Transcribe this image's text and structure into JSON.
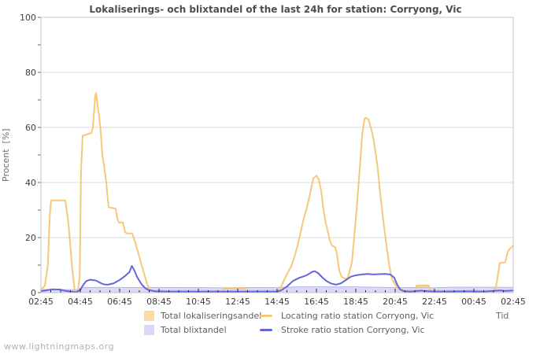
{
  "title": "Lokaliserings- och blixtandel of the last 24h for station: Corryong, Vic",
  "watermark": "www.lightningmaps.org",
  "axes": {
    "y_label": "Procent  [%]",
    "x_label": "Tid",
    "y_ticks": [
      0,
      20,
      40,
      60,
      80,
      100
    ],
    "x_tick_labels": [
      "02:45",
      "04:45",
      "06:45",
      "08:45",
      "10:45",
      "12:45",
      "14:45",
      "16:45",
      "18:45",
      "20:45",
      "22:45",
      "00:45",
      "02:45"
    ]
  },
  "legend": {
    "items": [
      {
        "label": "Total lokaliseringsandel",
        "swatch": "area",
        "color": "#f9dca4"
      },
      {
        "label": "Total blixtandel",
        "swatch": "area",
        "color": "#d9d9f7"
      },
      {
        "label": "Locating ratio station Corryong, Vic",
        "swatch": "line",
        "color": "#f6c878"
      },
      {
        "label": "Stroke ratio station Corryong, Vic",
        "swatch": "line",
        "color": "#6666d8"
      }
    ]
  },
  "colors": {
    "grid": "#d9d9d9",
    "plot_border": "#c6c6c6",
    "x_tick": "#222222",
    "y_tick": "#666666",
    "blixtandel_edge": "#b6b6ea"
  },
  "chart_data": {
    "type": "line",
    "title": "Lokaliserings- och blixtandel of the last 24h for station: Corryong, Vic",
    "xlabel": "Tid",
    "ylabel": "Procent [%]",
    "ylim": [
      0,
      100
    ],
    "y_ticks": [
      0,
      20,
      40,
      60,
      80,
      100
    ],
    "grid": "horizontal-major-gridlines",
    "legend_position": "bottom",
    "x_axis_hours_span": 24,
    "x_start_time": "02:45",
    "x_major_tick_hours": 2,
    "x_minor_tick_hours": 0.5,
    "note": "points are [hours_after_02:45, percent]",
    "series": [
      {
        "name": "Total lokaliseringsandel",
        "slug": "total-lokaliseringsandel",
        "type": "area",
        "color": "#f9dca4",
        "points": [
          [
            0,
            0.35
          ],
          [
            9.2,
            0.35
          ],
          [
            9.3,
            1.45
          ],
          [
            10.4,
            1.45
          ],
          [
            10.5,
            0.35
          ],
          [
            19.0,
            0.35
          ],
          [
            19.1,
            2.5
          ],
          [
            19.7,
            2.5
          ],
          [
            19.8,
            0.35
          ],
          [
            24,
            0.35
          ]
        ]
      },
      {
        "name": "Total blixtandel",
        "slug": "total-blixtandel",
        "type": "area",
        "color": "#d9d9f7",
        "edge_color": "#b6b6ea",
        "points": [
          [
            0,
            1.1
          ],
          [
            1.9,
            1.1
          ],
          [
            2.05,
            1.9
          ],
          [
            6,
            1.9
          ],
          [
            9,
            1.8
          ],
          [
            12,
            1.9
          ],
          [
            13,
            2.1
          ],
          [
            16,
            2.1
          ],
          [
            17.5,
            1.9
          ],
          [
            20,
            1.8
          ],
          [
            21,
            2.0
          ],
          [
            24,
            1.9
          ]
        ]
      },
      {
        "name": "Locating ratio station Corryong, Vic",
        "slug": "locating-ratio",
        "type": "line",
        "color": "#f6c878",
        "points": [
          [
            0,
            1
          ],
          [
            0.2,
            2.5
          ],
          [
            0.35,
            10
          ],
          [
            0.45,
            28
          ],
          [
            0.52,
            33.5
          ],
          [
            1.24,
            33.5
          ],
          [
            1.4,
            25
          ],
          [
            1.6,
            8
          ],
          [
            1.72,
            0.7
          ],
          [
            1.88,
            0.5
          ],
          [
            1.97,
            6
          ],
          [
            2.04,
            45
          ],
          [
            2.12,
            57
          ],
          [
            2.56,
            58
          ],
          [
            2.64,
            60
          ],
          [
            2.76,
            71.5
          ],
          [
            2.8,
            72.5
          ],
          [
            2.88,
            68
          ],
          [
            2.96,
            64
          ],
          [
            3.04,
            58.5
          ],
          [
            3.12,
            50
          ],
          [
            3.2,
            46.5
          ],
          [
            3.32,
            40
          ],
          [
            3.44,
            31
          ],
          [
            3.8,
            30.5
          ],
          [
            3.88,
            27
          ],
          [
            3.96,
            25.5
          ],
          [
            4.16,
            25.5
          ],
          [
            4.28,
            22
          ],
          [
            4.36,
            21.5
          ],
          [
            4.64,
            21.5
          ],
          [
            4.8,
            18
          ],
          [
            5.0,
            13
          ],
          [
            5.2,
            8
          ],
          [
            5.4,
            3
          ],
          [
            5.56,
            0.8
          ],
          [
            5.9,
            0.4
          ],
          [
            9.2,
            0.4
          ],
          [
            9.3,
            1.5
          ],
          [
            10.4,
            1.5
          ],
          [
            10.5,
            0.4
          ],
          [
            12.0,
            0.4
          ],
          [
            12.16,
            1.5
          ],
          [
            12.32,
            4
          ],
          [
            12.52,
            7
          ],
          [
            12.72,
            9.5
          ],
          [
            12.88,
            13
          ],
          [
            13.04,
            17
          ],
          [
            13.2,
            22
          ],
          [
            13.36,
            27
          ],
          [
            13.52,
            31
          ],
          [
            13.68,
            36
          ],
          [
            13.84,
            41.5
          ],
          [
            14.0,
            42.5
          ],
          [
            14.12,
            41
          ],
          [
            14.24,
            37
          ],
          [
            14.36,
            30
          ],
          [
            14.48,
            25
          ],
          [
            14.56,
            22.8
          ],
          [
            14.68,
            19
          ],
          [
            14.8,
            17
          ],
          [
            14.96,
            16.5
          ],
          [
            15.04,
            14
          ],
          [
            15.16,
            8
          ],
          [
            15.28,
            5.8
          ],
          [
            15.48,
            4.9
          ],
          [
            15.6,
            5.5
          ],
          [
            15.8,
            11
          ],
          [
            15.92,
            20
          ],
          [
            16.04,
            30
          ],
          [
            16.2,
            45
          ],
          [
            16.32,
            57
          ],
          [
            16.44,
            63
          ],
          [
            16.5,
            63.5
          ],
          [
            16.64,
            63
          ],
          [
            16.8,
            59
          ],
          [
            16.92,
            55
          ],
          [
            17.12,
            45
          ],
          [
            17.24,
            36
          ],
          [
            17.4,
            26
          ],
          [
            17.6,
            15
          ],
          [
            17.72,
            9
          ],
          [
            17.84,
            5
          ],
          [
            18.0,
            3
          ],
          [
            18.16,
            1.5
          ],
          [
            18.32,
            0.6
          ],
          [
            19.0,
            0.4
          ],
          [
            19.1,
            2.6
          ],
          [
            19.7,
            2.6
          ],
          [
            19.8,
            0.4
          ],
          [
            23.0,
            0.35
          ],
          [
            23.12,
            2
          ],
          [
            23.2,
            5.4
          ],
          [
            23.28,
            9
          ],
          [
            23.32,
            10.8
          ],
          [
            23.6,
            11
          ],
          [
            23.72,
            14.9
          ],
          [
            23.84,
            16
          ],
          [
            24,
            17
          ]
        ]
      },
      {
        "name": "Stroke ratio station Corryong, Vic",
        "slug": "stroke-ratio",
        "type": "line",
        "color": "#6666d8",
        "points": [
          [
            0,
            0.5
          ],
          [
            0.3,
            0.9
          ],
          [
            0.56,
            1.2
          ],
          [
            1.0,
            1.1
          ],
          [
            1.2,
            0.7
          ],
          [
            1.5,
            0.4
          ],
          [
            1.8,
            0.2
          ],
          [
            2.0,
            1
          ],
          [
            2.12,
            2.5
          ],
          [
            2.3,
            4.2
          ],
          [
            2.5,
            4.7
          ],
          [
            2.8,
            4.4
          ],
          [
            3.0,
            3.6
          ],
          [
            3.2,
            3.0
          ],
          [
            3.4,
            2.9
          ],
          [
            3.7,
            3.4
          ],
          [
            4.0,
            4.6
          ],
          [
            4.3,
            6.2
          ],
          [
            4.5,
            7.5
          ],
          [
            4.62,
            9.7
          ],
          [
            4.72,
            8.5
          ],
          [
            4.9,
            5.5
          ],
          [
            5.1,
            3.2
          ],
          [
            5.3,
            1.6
          ],
          [
            5.5,
            0.9
          ],
          [
            5.8,
            0.5
          ],
          [
            6.5,
            0.4
          ],
          [
            12.0,
            0.4
          ],
          [
            12.2,
            0.8
          ],
          [
            12.5,
            2.2
          ],
          [
            12.8,
            4.2
          ],
          [
            13.1,
            5.3
          ],
          [
            13.5,
            6.3
          ],
          [
            13.8,
            7.6
          ],
          [
            13.92,
            7.8
          ],
          [
            14.1,
            7.0
          ],
          [
            14.3,
            5.5
          ],
          [
            14.5,
            4.3
          ],
          [
            14.75,
            3.3
          ],
          [
            15.0,
            2.9
          ],
          [
            15.25,
            3.4
          ],
          [
            15.5,
            4.6
          ],
          [
            15.75,
            5.8
          ],
          [
            16.0,
            6.3
          ],
          [
            16.3,
            6.6
          ],
          [
            16.6,
            6.8
          ],
          [
            16.9,
            6.6
          ],
          [
            17.2,
            6.7
          ],
          [
            17.5,
            6.8
          ],
          [
            17.75,
            6.6
          ],
          [
            17.95,
            5.5
          ],
          [
            18.1,
            3
          ],
          [
            18.25,
            1.2
          ],
          [
            18.45,
            0.5
          ],
          [
            18.8,
            0.4
          ],
          [
            19.3,
            0.7
          ],
          [
            19.7,
            0.5
          ],
          [
            20.5,
            0.4
          ],
          [
            21.5,
            0.5
          ],
          [
            22.5,
            0.4
          ],
          [
            23.3,
            0.8
          ],
          [
            23.6,
            0.6
          ],
          [
            24,
            0.8
          ]
        ]
      }
    ]
  }
}
